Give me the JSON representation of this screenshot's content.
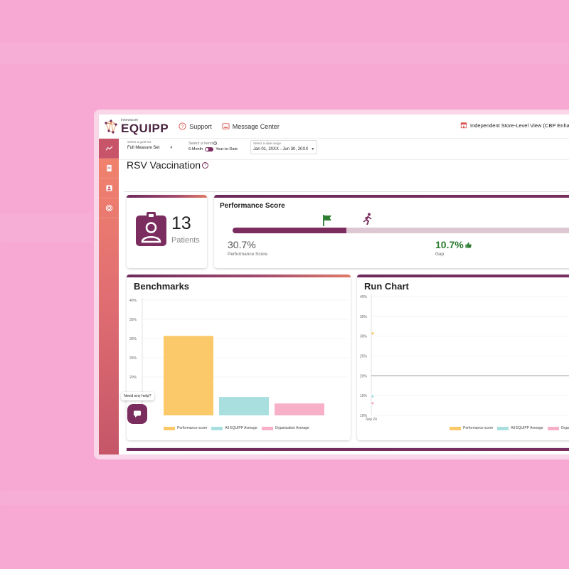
{
  "app": {
    "logo_sub": "innovaccer",
    "logo_main": "EQUIPP"
  },
  "nav": {
    "support": "Support",
    "message_center": "Message Center",
    "store_view": "Independent Store-Level View (CBP Enhanc"
  },
  "filters": {
    "goal_label": "Select a goal set",
    "goal_value": "Full Measure Set",
    "trend_label": "Select a trend",
    "trend_left": "6-Month",
    "trend_right": "Year-to-Date",
    "date_label": "Select a date range",
    "date_value": "Jan 01, 20XX - Jun 30, 20XX"
  },
  "page": {
    "title": "RSV Vaccination"
  },
  "patients": {
    "count": "13",
    "label": "Patients"
  },
  "performance": {
    "title": "Performance Score",
    "score": "30.7%",
    "score_label": "Performance Score",
    "gap": "10.7%",
    "gap_label": "Gap",
    "progress_fraction": 0.307
  },
  "benchmarks": {
    "title": "Benchmarks"
  },
  "run_chart": {
    "title": "Run Chart"
  },
  "help": {
    "bubble": "Need any help?"
  },
  "colors": {
    "primary": "#7b2d5f",
    "performance": "#fcc96a",
    "equipp_avg": "#a9e0df",
    "org_avg": "#f7b0c8",
    "positive": "#2e7d32"
  },
  "chart_data": [
    {
      "type": "bar",
      "title": "Benchmarks",
      "categories": [
        "Performance score",
        "All EQUIPP Average",
        "Organization Average"
      ],
      "values": [
        30.7,
        14.8,
        13.1
      ],
      "ylim": [
        10,
        40
      ],
      "yticks": [
        "40%",
        "35%",
        "30%",
        "25%",
        "20%"
      ],
      "legend": [
        "Performance score",
        "All EQUIPP Average",
        "Organization Average"
      ],
      "legend_position": "bottom"
    },
    {
      "type": "line",
      "title": "Run Chart",
      "x": [
        "Sep 24"
      ],
      "series": [
        {
          "name": "Performance score",
          "values": [
            30.7
          ]
        },
        {
          "name": "All EQUIPP Average",
          "values": [
            14.8
          ]
        },
        {
          "name": "Organization Average",
          "values": [
            13.1
          ]
        }
      ],
      "reference_line": 20,
      "ylim": [
        10,
        40
      ],
      "yticks": [
        "40%",
        "35%",
        "30%",
        "25%",
        "20%",
        "15%",
        "10%"
      ],
      "legend": [
        "Performance score",
        "All EQUIPP Average",
        "Orga"
      ],
      "legend_position": "bottom"
    }
  ]
}
